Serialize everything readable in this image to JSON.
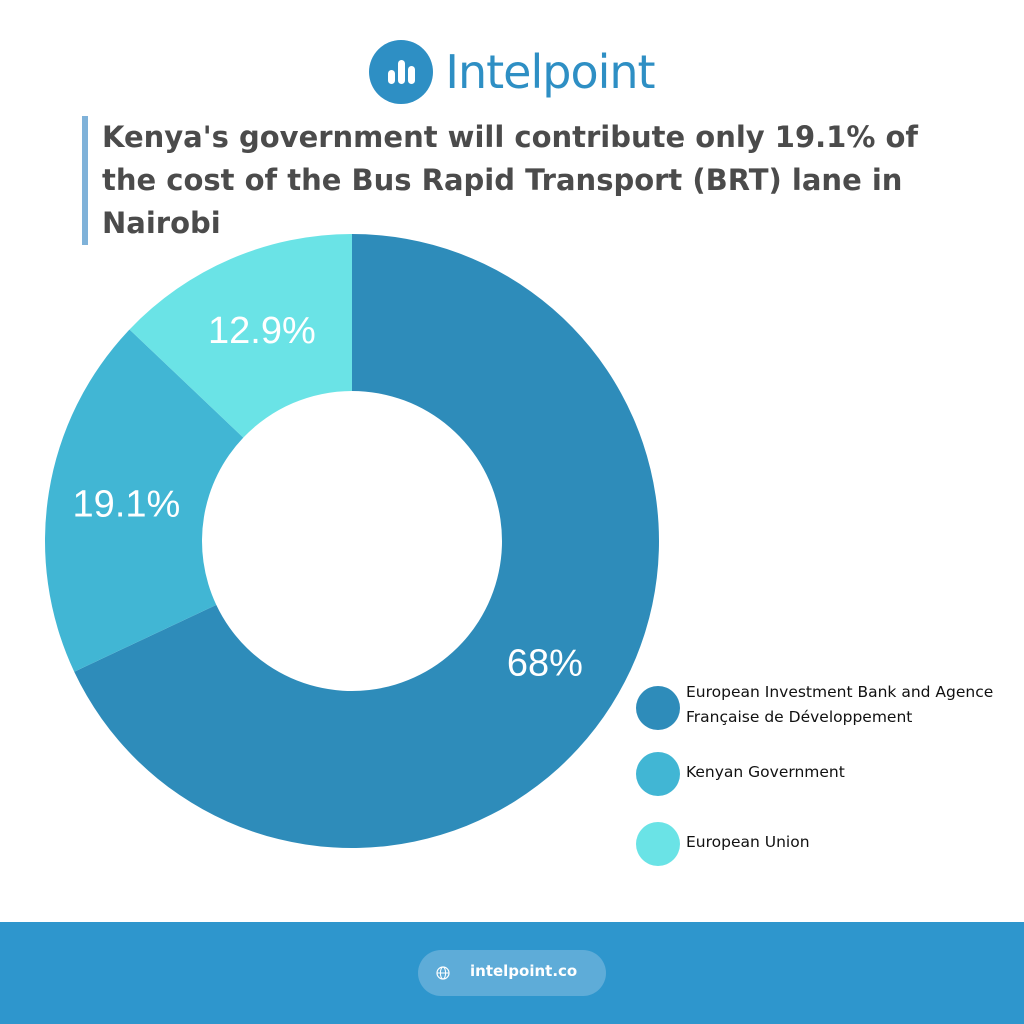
{
  "brand": {
    "name": "Intelpoint",
    "color": "#2e8fc4"
  },
  "header": {
    "title": "Kenya's government will contribute only 19.1% of the cost of the Bus Rapid Transport (BRT) lane in Nairobi"
  },
  "chart_data": {
    "type": "pie",
    "variant": "donut",
    "slices": [
      {
        "label": "European Investment Bank and Agence Française de Développement",
        "value": 68,
        "display": "68%",
        "color": "#2e8cba"
      },
      {
        "label": "Kenyan Government",
        "value": 19.1,
        "display": "19.1%",
        "color": "#41b6d4"
      },
      {
        "label": "European Union",
        "value": 12.9,
        "display": "12.9%",
        "color": "#6ae3e6"
      }
    ],
    "legend_position": "bottom-right"
  },
  "footer": {
    "url": "intelpoint.co",
    "icon": "globe-icon",
    "color": "#2e96cd"
  }
}
